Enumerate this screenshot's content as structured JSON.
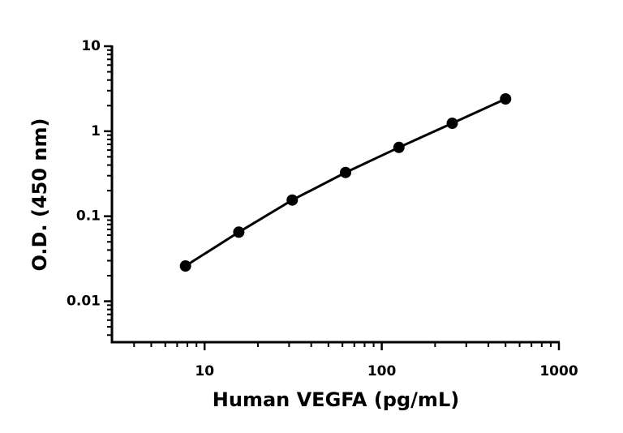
{
  "chart_data": {
    "type": "line",
    "x_label": "Human VEGFA (pg/mL)",
    "y_label": "O.D. (450 nm)",
    "x": [
      7.8,
      15.6,
      31.25,
      62.5,
      125,
      250,
      500
    ],
    "series": [
      {
        "color": "#000000",
        "values": [
          0.026,
          0.065,
          0.155,
          0.327,
          0.645,
          1.24,
          2.4
        ]
      }
    ],
    "xscale": "log",
    "yscale": "log",
    "xlim": [
      3,
      1000
    ],
    "ylim": [
      0.0033,
      10
    ],
    "xticks": [
      10,
      100,
      1000
    ],
    "yticks": [
      0.01,
      0.1,
      1,
      10
    ],
    "xminor_ticks": [
      4,
      5,
      6,
      7,
      8,
      9,
      20,
      30,
      40,
      50,
      60,
      70,
      80,
      90,
      200,
      300,
      400,
      500,
      600,
      700,
      800,
      900
    ],
    "yminor_ticks": [
      0.004,
      0.005,
      0.006,
      0.007,
      0.008,
      0.009,
      0.02,
      0.03,
      0.04,
      0.05,
      0.06,
      0.07,
      0.08,
      0.09,
      0.2,
      0.3,
      0.4,
      0.5,
      0.6,
      0.7,
      0.8,
      0.9,
      2,
      3,
      4,
      5,
      6,
      7,
      8,
      9
    ],
    "grid": false
  }
}
